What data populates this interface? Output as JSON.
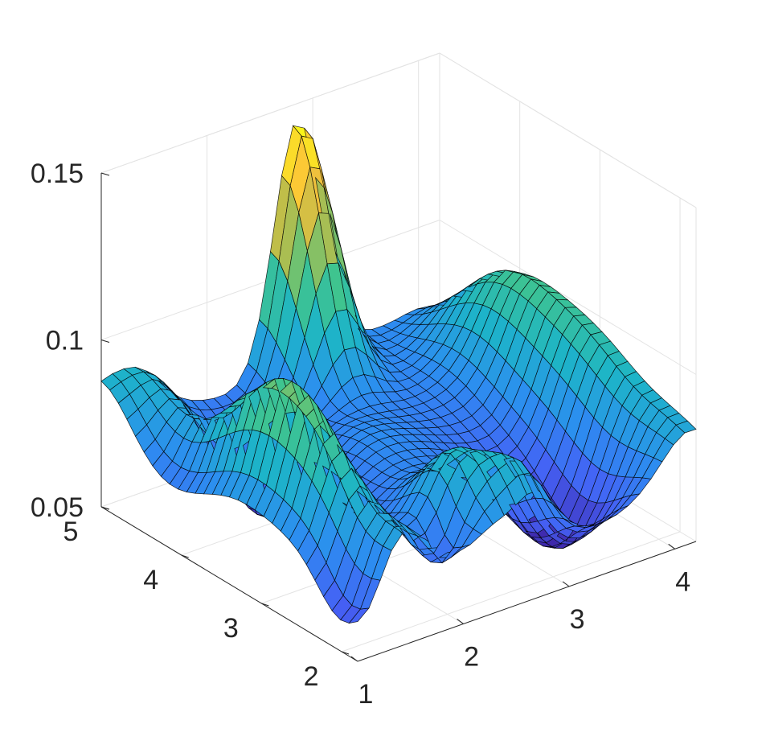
{
  "chart_data": {
    "type": "surface",
    "title": "",
    "xlabel": "",
    "ylabel": "",
    "zlabel": "",
    "xlim": [
      1,
      4.2
    ],
    "ylim": [
      1.8,
      5
    ],
    "zlim": [
      0.05,
      0.15
    ],
    "x_ticks": [
      "1",
      "2",
      "3",
      "4"
    ],
    "y_ticks": [
      "2",
      "3",
      "4",
      "5"
    ],
    "z_ticks": [
      "0.05",
      "0.1",
      "0.15"
    ],
    "grid": true,
    "colormap": "parula",
    "colormap_stops": [
      "#3e26a8",
      "#4561f5",
      "#2c8ef0",
      "#1db4c8",
      "#42c58a",
      "#b5bd4c",
      "#fcc23a",
      "#f9fb15"
    ],
    "features": [
      {
        "name": "sharp peak",
        "x": 2.85,
        "y": 4.95,
        "z": 0.148
      },
      {
        "name": "yellow ridge peak",
        "x": 1.4,
        "y": 3.2,
        "z": 0.118
      },
      {
        "name": "right ridge",
        "x": 4.1,
        "y": 3.2,
        "z": 0.1
      },
      {
        "name": "left edge",
        "x": 1.0,
        "y": 5.0,
        "z": 0.082
      },
      {
        "name": "valley",
        "x": 3.3,
        "y": 2.5,
        "z": 0.04
      },
      {
        "name": "valley",
        "x": 1.8,
        "y": 4.0,
        "z": 0.046
      }
    ]
  }
}
